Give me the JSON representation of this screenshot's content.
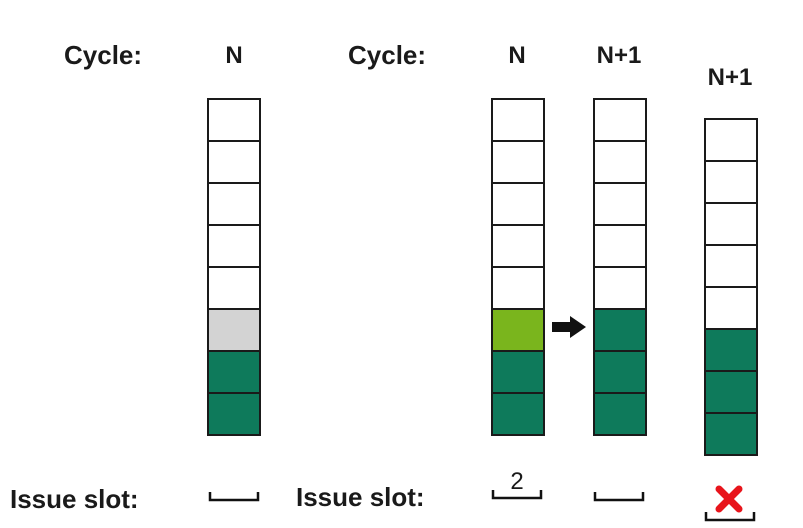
{
  "labels": {
    "cycle_left": "Cycle:",
    "cycle_right": "Cycle:",
    "issue_left": "Issue slot:",
    "issue_right": "Issue slot:"
  },
  "columns": [
    {
      "title": "N",
      "cells": [
        "empty",
        "empty",
        "empty",
        "empty",
        "empty",
        "gray",
        "dark",
        "dark"
      ]
    },
    {
      "title": "N",
      "cells": [
        "empty",
        "empty",
        "empty",
        "empty",
        "empty",
        "lime",
        "dark",
        "dark"
      ]
    },
    {
      "title": "N+1",
      "cells": [
        "empty",
        "empty",
        "empty",
        "empty",
        "empty",
        "dark",
        "dark",
        "dark"
      ]
    },
    {
      "title": "N+1",
      "cells": [
        "empty",
        "empty",
        "empty",
        "empty",
        "empty",
        "dark",
        "dark",
        "dark"
      ]
    }
  ],
  "slots": {
    "value": "2",
    "rejected_marker": "x-icon"
  },
  "colors": {
    "dark": "#0e7a5b",
    "gray": "#d3d3d3",
    "lime": "#7ab51d",
    "reject": "#e8141b"
  },
  "icons": {
    "arrow": "right-arrow-icon",
    "reject": "x-icon"
  }
}
